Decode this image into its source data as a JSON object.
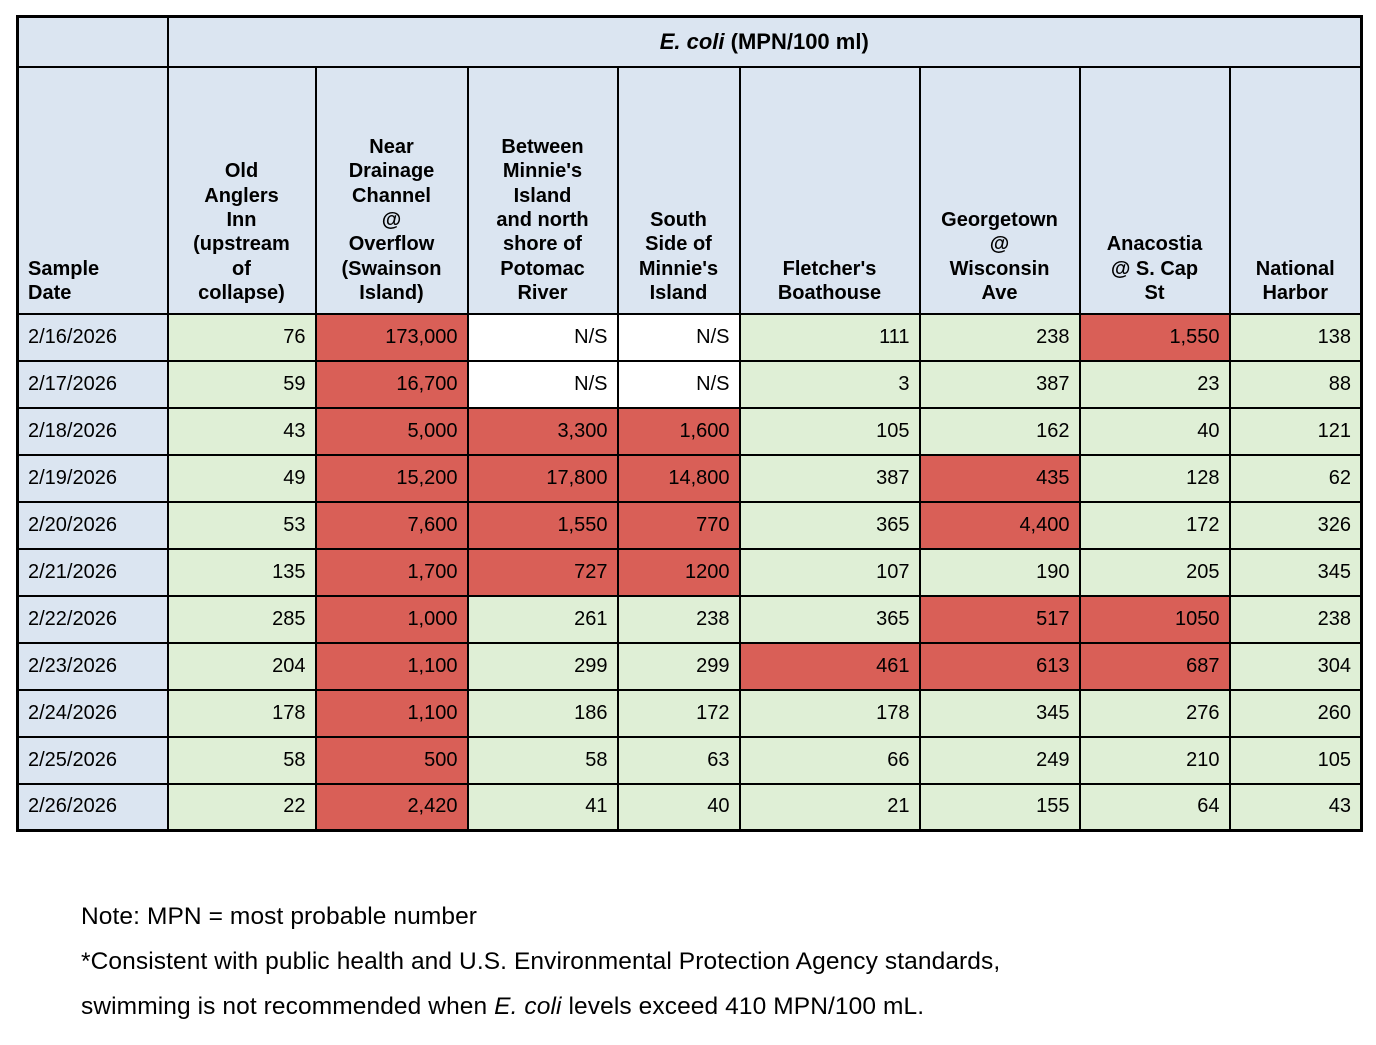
{
  "table": {
    "title": {
      "italic": "E. coli",
      "rest": " (MPN/100 ml)"
    },
    "columns": [
      {
        "label": "Sample\nDate"
      },
      {
        "label": "Old\nAnglers\nInn\n(upstream\nof\ncollapse)"
      },
      {
        "label": "Near\nDrainage\nChannel\n@\nOverflow\n(Swainson\nIsland)"
      },
      {
        "label": "Between\nMinnie's\nIsland\nand north\nshore of\nPotomac\nRiver"
      },
      {
        "label": "South\nSide of\nMinnie's\nIsland"
      },
      {
        "label": "Fletcher's\nBoathouse"
      },
      {
        "label": "Georgetown\n@\nWisconsin\nAve"
      },
      {
        "label": "Anacostia\n@ S. Cap\nSt"
      },
      {
        "label": "National\nHarbor"
      }
    ],
    "rows": [
      {
        "date": "2/16/2026",
        "cells": [
          {
            "text": "76",
            "status": "safe"
          },
          {
            "text": "173,000",
            "status": "high"
          },
          {
            "text": "N/S",
            "status": "ns"
          },
          {
            "text": "N/S",
            "status": "ns"
          },
          {
            "text": "111",
            "status": "safe"
          },
          {
            "text": "238",
            "status": "safe"
          },
          {
            "text": "1,550",
            "status": "high"
          },
          {
            "text": "138",
            "status": "safe"
          }
        ]
      },
      {
        "date": "2/17/2026",
        "cells": [
          {
            "text": "59",
            "status": "safe"
          },
          {
            "text": "16,700",
            "status": "high"
          },
          {
            "text": "N/S",
            "status": "ns"
          },
          {
            "text": "N/S",
            "status": "ns"
          },
          {
            "text": "3",
            "status": "safe"
          },
          {
            "text": "387",
            "status": "safe"
          },
          {
            "text": "23",
            "status": "safe"
          },
          {
            "text": "88",
            "status": "safe"
          }
        ]
      },
      {
        "date": "2/18/2026",
        "cells": [
          {
            "text": "43",
            "status": "safe"
          },
          {
            "text": "5,000",
            "status": "high"
          },
          {
            "text": "3,300",
            "status": "high"
          },
          {
            "text": "1,600",
            "status": "high"
          },
          {
            "text": "105",
            "status": "safe"
          },
          {
            "text": "162",
            "status": "safe"
          },
          {
            "text": "40",
            "status": "safe"
          },
          {
            "text": "121",
            "status": "safe"
          }
        ]
      },
      {
        "date": "2/19/2026",
        "cells": [
          {
            "text": "49",
            "status": "safe"
          },
          {
            "text": "15,200",
            "status": "high"
          },
          {
            "text": "17,800",
            "status": "high"
          },
          {
            "text": "14,800",
            "status": "high"
          },
          {
            "text": "387",
            "status": "safe"
          },
          {
            "text": "435",
            "status": "high"
          },
          {
            "text": "128",
            "status": "safe"
          },
          {
            "text": "62",
            "status": "safe"
          }
        ]
      },
      {
        "date": "2/20/2026",
        "cells": [
          {
            "text": "53",
            "status": "safe"
          },
          {
            "text": "7,600",
            "status": "high"
          },
          {
            "text": "1,550",
            "status": "high"
          },
          {
            "text": "770",
            "status": "high"
          },
          {
            "text": "365",
            "status": "safe"
          },
          {
            "text": "4,400",
            "status": "high"
          },
          {
            "text": "172",
            "status": "safe"
          },
          {
            "text": "326",
            "status": "safe"
          }
        ]
      },
      {
        "date": "2/21/2026",
        "cells": [
          {
            "text": "135",
            "status": "safe"
          },
          {
            "text": "1,700",
            "status": "high"
          },
          {
            "text": "727",
            "status": "high"
          },
          {
            "text": "1200",
            "status": "high"
          },
          {
            "text": "107",
            "status": "safe"
          },
          {
            "text": "190",
            "status": "safe"
          },
          {
            "text": "205",
            "status": "safe"
          },
          {
            "text": "345",
            "status": "safe"
          }
        ]
      },
      {
        "date": "2/22/2026",
        "cells": [
          {
            "text": "285",
            "status": "safe"
          },
          {
            "text": "1,000",
            "status": "high"
          },
          {
            "text": "261",
            "status": "safe"
          },
          {
            "text": "238",
            "status": "safe"
          },
          {
            "text": "365",
            "status": "safe"
          },
          {
            "text": "517",
            "status": "high"
          },
          {
            "text": "1050",
            "status": "high"
          },
          {
            "text": "238",
            "status": "safe"
          }
        ]
      },
      {
        "date": "2/23/2026",
        "cells": [
          {
            "text": "204",
            "status": "safe"
          },
          {
            "text": "1,100",
            "status": "high"
          },
          {
            "text": "299",
            "status": "safe"
          },
          {
            "text": "299",
            "status": "safe"
          },
          {
            "text": "461",
            "status": "high"
          },
          {
            "text": "613",
            "status": "high"
          },
          {
            "text": "687",
            "status": "high"
          },
          {
            "text": "304",
            "status": "safe"
          }
        ]
      },
      {
        "date": "2/24/2026",
        "cells": [
          {
            "text": "178",
            "status": "safe"
          },
          {
            "text": "1,100",
            "status": "high"
          },
          {
            "text": "186",
            "status": "safe"
          },
          {
            "text": "172",
            "status": "safe"
          },
          {
            "text": "178",
            "status": "safe"
          },
          {
            "text": "345",
            "status": "safe"
          },
          {
            "text": "276",
            "status": "safe"
          },
          {
            "text": "260",
            "status": "safe"
          }
        ]
      },
      {
        "date": "2/25/2026",
        "cells": [
          {
            "text": "58",
            "status": "safe"
          },
          {
            "text": "500",
            "status": "high"
          },
          {
            "text": "58",
            "status": "safe"
          },
          {
            "text": "63",
            "status": "safe"
          },
          {
            "text": "66",
            "status": "safe"
          },
          {
            "text": "249",
            "status": "safe"
          },
          {
            "text": "210",
            "status": "safe"
          },
          {
            "text": "105",
            "status": "safe"
          }
        ]
      },
      {
        "date": "2/26/2026",
        "cells": [
          {
            "text": "22",
            "status": "safe"
          },
          {
            "text": "2,420",
            "status": "high"
          },
          {
            "text": "41",
            "status": "safe"
          },
          {
            "text": "40",
            "status": "safe"
          },
          {
            "text": "21",
            "status": "safe"
          },
          {
            "text": "155",
            "status": "safe"
          },
          {
            "text": "64",
            "status": "safe"
          },
          {
            "text": "43",
            "status": "safe"
          }
        ]
      }
    ]
  },
  "colors": {
    "header_bg": "#dbe5f1",
    "safe_bg": "#dfefd6",
    "high_bg": "#d95f57",
    "ns_bg": "#ffffff"
  },
  "notes": {
    "line1": "Note: MPN = most probable number",
    "line2": "*Consistent with public health and U.S. Environmental Protection Agency standards,",
    "line3_pre": "swimming is not recommended when ",
    "line3_italic": "E. coli",
    "line3_post": " levels exceed 410 MPN/100 mL."
  }
}
